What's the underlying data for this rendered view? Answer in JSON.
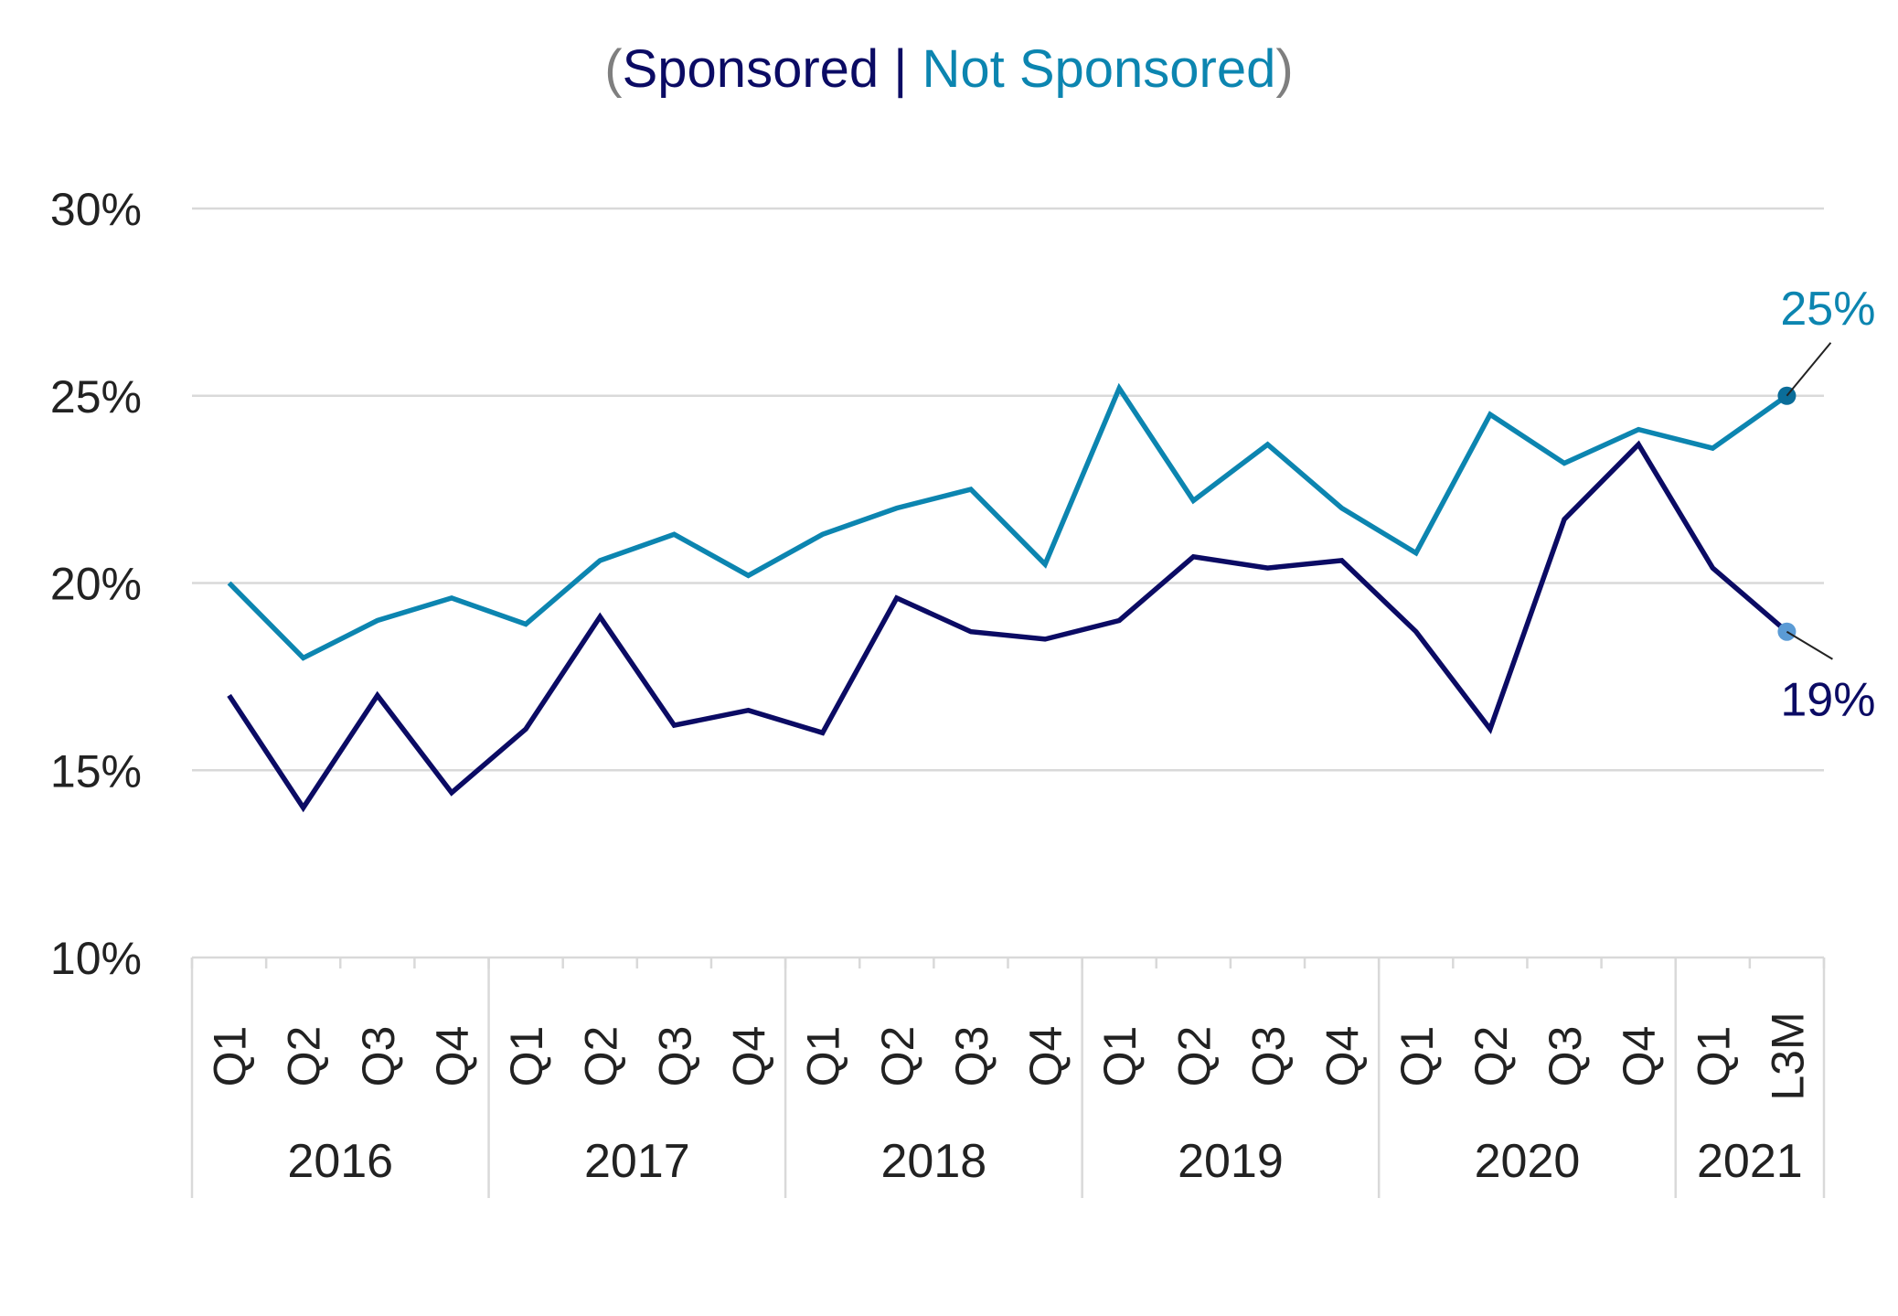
{
  "chart_data": {
    "type": "line",
    "title_parts": [
      "(",
      "Sponsored",
      " | ",
      "Not Sponsored",
      ")"
    ],
    "categories": [
      "Q1",
      "Q2",
      "Q3",
      "Q4",
      "Q1",
      "Q2",
      "Q3",
      "Q4",
      "Q1",
      "Q2",
      "Q3",
      "Q4",
      "Q1",
      "Q2",
      "Q3",
      "Q4",
      "Q1",
      "Q2",
      "Q3",
      "Q4",
      "Q1",
      "L3M"
    ],
    "category_groups": [
      {
        "label": "2016",
        "count": 4
      },
      {
        "label": "2017",
        "count": 4
      },
      {
        "label": "2018",
        "count": 4
      },
      {
        "label": "2019",
        "count": 4
      },
      {
        "label": "2020",
        "count": 4
      },
      {
        "label": "2021",
        "count": 2
      }
    ],
    "ylim": [
      10,
      30
    ],
    "yticks": [
      10,
      15,
      20,
      25,
      30
    ],
    "ytick_labels": [
      "10%",
      "15%",
      "20%",
      "25%",
      "30%"
    ],
    "grid": true,
    "series": [
      {
        "name": "Sponsored",
        "color": "#0b0b64",
        "marker_color": "#5b9bd5",
        "values": [
          17.0,
          14.0,
          17.0,
          14.4,
          16.1,
          19.1,
          16.2,
          16.6,
          16.0,
          19.6,
          18.7,
          18.5,
          19.0,
          20.7,
          20.4,
          20.6,
          18.7,
          16.1,
          21.7,
          23.7,
          20.4,
          18.7
        ],
        "end_label": "19%"
      },
      {
        "name": "Not Sponsored",
        "color": "#0c85b0",
        "marker_color": "#0a6d99",
        "values": [
          20.0,
          18.0,
          19.0,
          19.6,
          18.9,
          20.6,
          21.3,
          20.2,
          21.3,
          22.0,
          22.5,
          20.5,
          25.2,
          22.2,
          23.7,
          22.0,
          20.8,
          24.5,
          23.2,
          24.1,
          23.6,
          25.0
        ],
        "end_label": "25%"
      }
    ],
    "title_paren_color": "#7f7f7f"
  }
}
